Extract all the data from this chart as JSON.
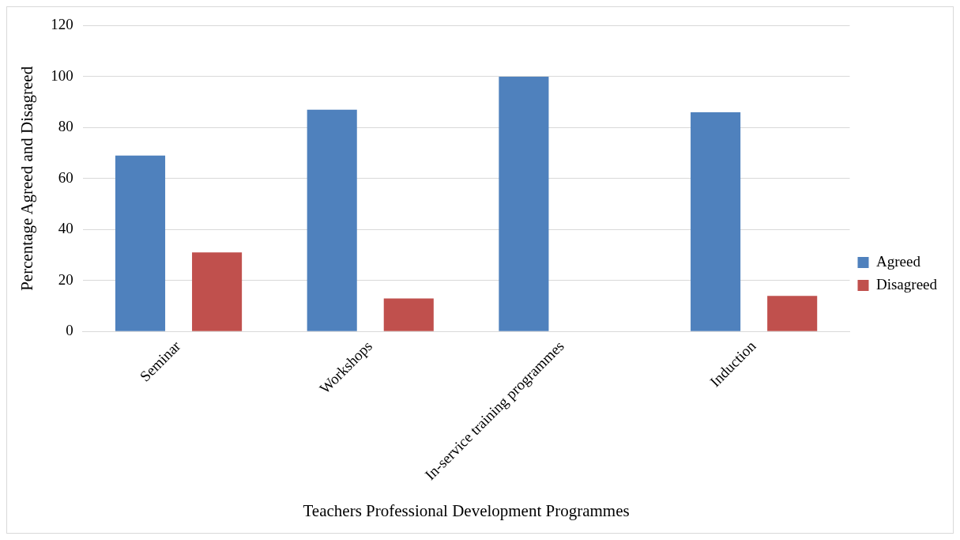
{
  "chart_data": {
    "type": "bar",
    "xlabel": "Teachers Professional Development Programmes",
    "ylabel": "Percentage Agreed and Disagreed",
    "categories": [
      "Seminar",
      "Workshops",
      "In-service training programmes",
      "Induction"
    ],
    "series": [
      {
        "name": "Agreed",
        "color": "#4f81bd",
        "values": [
          69,
          87,
          100,
          86
        ]
      },
      {
        "name": "Disagreed",
        "color": "#c0504d",
        "values": [
          31,
          13,
          0,
          14
        ]
      }
    ],
    "ylim": [
      0,
      120
    ],
    "yticks": [
      0,
      20,
      40,
      60,
      80,
      100,
      120
    ],
    "grid": "y",
    "legend": "right"
  }
}
